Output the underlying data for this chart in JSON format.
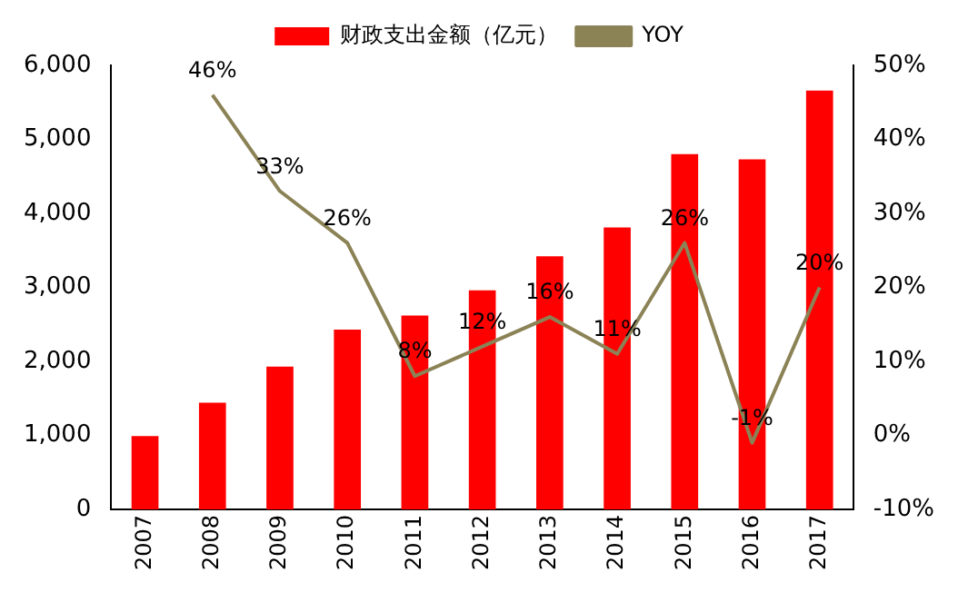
{
  "chart_data": {
    "type": "bar",
    "categories": [
      "2007",
      "2008",
      "2009",
      "2010",
      "2011",
      "2012",
      "2013",
      "2014",
      "2015",
      "2016",
      "2017"
    ],
    "series": [
      {
        "name": "财政支出金额（亿元）",
        "color": "#ff0000",
        "values": [
          990,
          1440,
          1930,
          2430,
          2620,
          2960,
          3420,
          3810,
          4800,
          4730,
          5660
        ]
      },
      {
        "name": "YOY",
        "type": "line",
        "axis": "y2",
        "color": "#8b8256",
        "values": [
          null,
          46,
          33,
          26,
          8,
          12,
          16,
          11,
          26,
          -1,
          20
        ],
        "value_labels": [
          null,
          "46%",
          "33%",
          "26%",
          "8%",
          "12%",
          "16%",
          "11%",
          "26%",
          "-1%",
          "20%"
        ]
      }
    ],
    "ylim": [
      0,
      6000
    ],
    "yticks": [
      {
        "value": 0,
        "label": "0"
      },
      {
        "value": 1000,
        "label": "1,000"
      },
      {
        "value": 2000,
        "label": "2,000"
      },
      {
        "value": 3000,
        "label": "3,000"
      },
      {
        "value": 4000,
        "label": "4,000"
      },
      {
        "value": 5000,
        "label": "5,000"
      },
      {
        "value": 6000,
        "label": "6,000"
      }
    ],
    "y2lim": [
      -10,
      50
    ],
    "y2ticks": [
      {
        "value": -10,
        "label": "-10%"
      },
      {
        "value": 0,
        "label": "0%"
      },
      {
        "value": 10,
        "label": "10%"
      },
      {
        "value": 20,
        "label": "20%"
      },
      {
        "value": 30,
        "label": "30%"
      },
      {
        "value": 40,
        "label": "40%"
      },
      {
        "value": 50,
        "label": "50%"
      }
    ],
    "grid": false,
    "legend": "top",
    "marker": "none",
    "line_style": "solid"
  }
}
